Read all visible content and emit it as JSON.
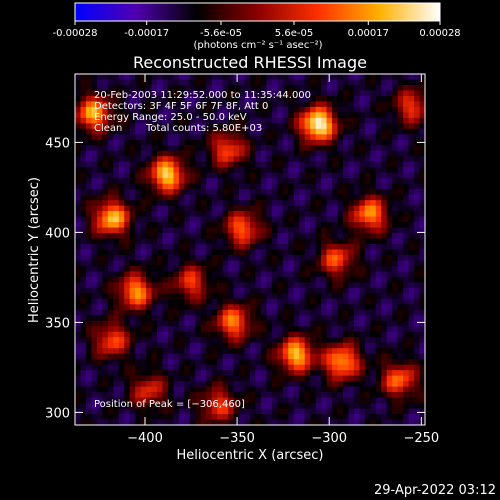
{
  "colorbar": {
    "tick_labels": [
      "-0.00028",
      "-0.00017",
      "-5.6e-05",
      "5.6e-05",
      "0.00017",
      "0.00028"
    ],
    "tick_values": [
      -0.00028,
      -0.00017,
      -5.6e-05,
      5.6e-05,
      0.00017,
      0.00028
    ],
    "units": "(photons cm⁻² s⁻¹ asec⁻²)",
    "range": [
      -0.00028,
      0.00028
    ],
    "stops": [
      "#0000ff",
      "#5000b0",
      "#000000",
      "#8b0000",
      "#ff3000",
      "#ffb000",
      "#ffffff"
    ]
  },
  "chart_data": {
    "type": "heatmap",
    "title": "Reconstructed RHESSI Image",
    "xlabel": "Heliocentric X (arcsec)",
    "ylabel": "Heliocentric Y (arcsec)",
    "xlim": [
      -438,
      -248
    ],
    "ylim": [
      293,
      488
    ],
    "x_ticks": [
      -400,
      -350,
      -300,
      -250
    ],
    "y_ticks": [
      300,
      350,
      400,
      450
    ],
    "x_tick_labels": [
      "−400",
      "−350",
      "−300",
      "−250"
    ],
    "y_tick_labels": [
      "300",
      "350",
      "400",
      "450"
    ],
    "annotations": [
      "20-Feb-2003 11:29:52.000 to 11:35:44.000",
      "Detectors: 3F 4F 5F 6F 7F 8F, Att 0",
      "Energy Range: 25.0 - 50.0 keV",
      "Clean",
      "Total counts: 5.80E+03"
    ],
    "peak_label": "Position of Peak = [−306,460]",
    "peak": [
      -306,
      460
    ],
    "bright_sources": [
      {
        "x": -306,
        "y": 460,
        "v": 1.0
      },
      {
        "x": -428,
        "y": 466,
        "v": 0.75
      },
      {
        "x": -388,
        "y": 432,
        "v": 0.85
      },
      {
        "x": -355,
        "y": 446,
        "v": 0.55
      },
      {
        "x": -418,
        "y": 408,
        "v": 0.8
      },
      {
        "x": -347,
        "y": 402,
        "v": 0.6
      },
      {
        "x": -278,
        "y": 410,
        "v": 0.7
      },
      {
        "x": -296,
        "y": 385,
        "v": 0.55
      },
      {
        "x": -405,
        "y": 367,
        "v": 0.7
      },
      {
        "x": -375,
        "y": 372,
        "v": 0.5
      },
      {
        "x": -418,
        "y": 340,
        "v": 0.55
      },
      {
        "x": -352,
        "y": 350,
        "v": 0.65
      },
      {
        "x": -318,
        "y": 332,
        "v": 0.8
      },
      {
        "x": -293,
        "y": 328,
        "v": 0.75
      },
      {
        "x": -262,
        "y": 318,
        "v": 0.6
      },
      {
        "x": -398,
        "y": 312,
        "v": 0.45
      },
      {
        "x": -360,
        "y": 304,
        "v": 0.5
      },
      {
        "x": -255,
        "y": 470,
        "v": 0.5
      }
    ]
  },
  "timestamp": "29-Apr-2022 03:12"
}
